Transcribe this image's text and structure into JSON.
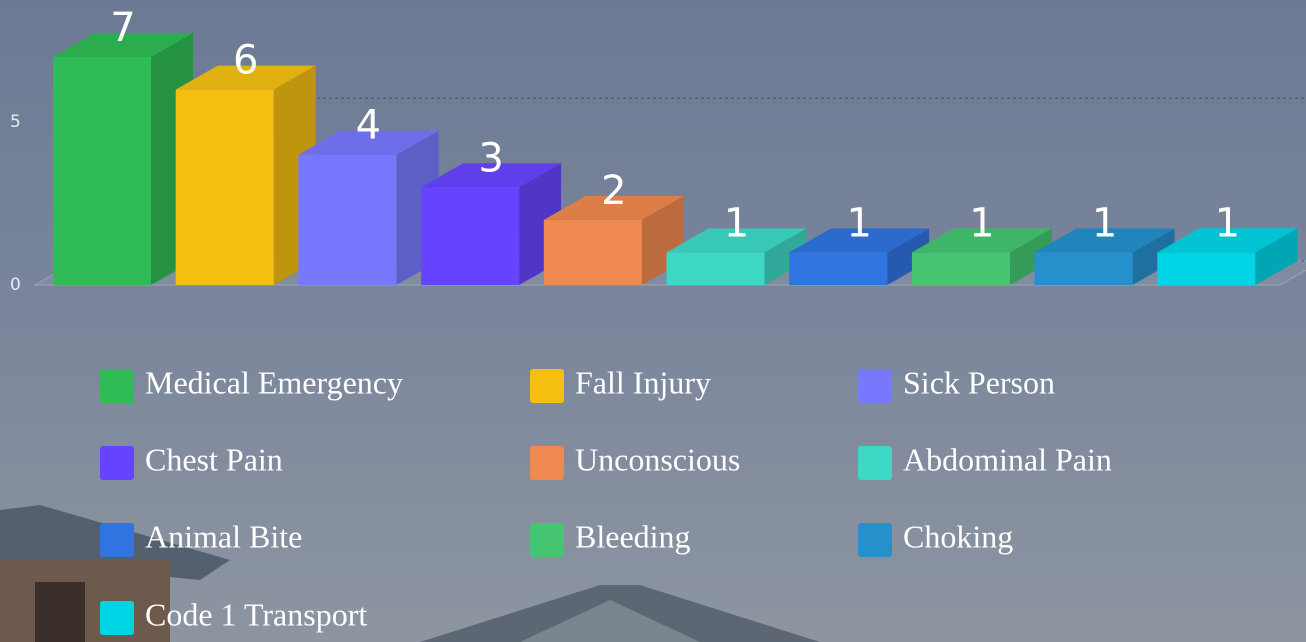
{
  "chart_data": {
    "type": "bar3d",
    "categories": [
      "Medical Emergency",
      "Fall Injury",
      "Sick Person",
      "Chest Pain",
      "Unconscious",
      "Abdominal Pain",
      "Animal Bite",
      "Bleeding",
      "Choking",
      "Code 1 Transport"
    ],
    "values": [
      7,
      6,
      4,
      3,
      2,
      1,
      1,
      1,
      1,
      1
    ],
    "colors": [
      "#2fbb55",
      "#f5bf12",
      "#7878ff",
      "#6644ff",
      "#f0894f",
      "#3dd9c5",
      "#2f74e0",
      "#45c571",
      "#2590cc",
      "#00d5e6"
    ],
    "ylim": [
      0,
      8.75
    ],
    "yticks": [
      0,
      5
    ],
    "grid": true,
    "legend": "bottom"
  }
}
